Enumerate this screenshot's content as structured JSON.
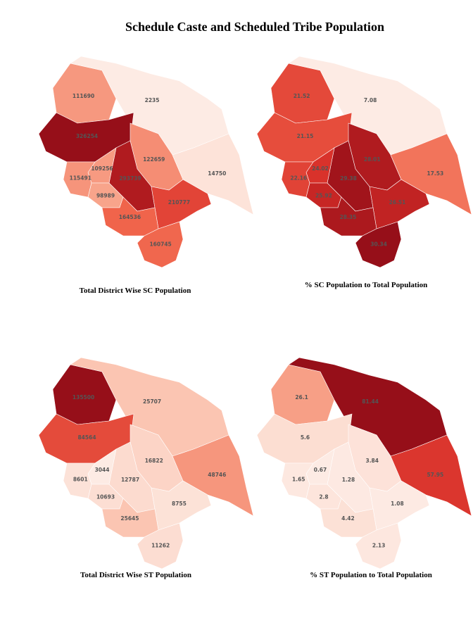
{
  "title": "Schedule Caste and Scheduled Tribe Population",
  "maps": [
    {
      "caption": "Total District Wise SC Population",
      "values": [
        111690,
        2235,
        326254,
        122659,
        14750,
        293739,
        109256,
        115491,
        98989,
        210777,
        164536,
        160745
      ]
    },
    {
      "caption": "% SC Population to Total Population",
      "values": [
        21.52,
        7.08,
        21.15,
        28.01,
        17.53,
        29.38,
        24.02,
        22.16,
        25.92,
        26.51,
        28.35,
        30.34
      ]
    },
    {
      "caption": "Total District Wise ST Population",
      "values": [
        135500,
        25707,
        84564,
        16822,
        48746,
        12787,
        3044,
        8601,
        10693,
        8755,
        25645,
        11262
      ]
    },
    {
      "caption": "%  ST Population to Total Population",
      "values": [
        26.1,
        81.44,
        5.6,
        3.84,
        57.95,
        1.28,
        0.67,
        1.65,
        2.8,
        1.08,
        4.42,
        2.13
      ]
    }
  ]
}
